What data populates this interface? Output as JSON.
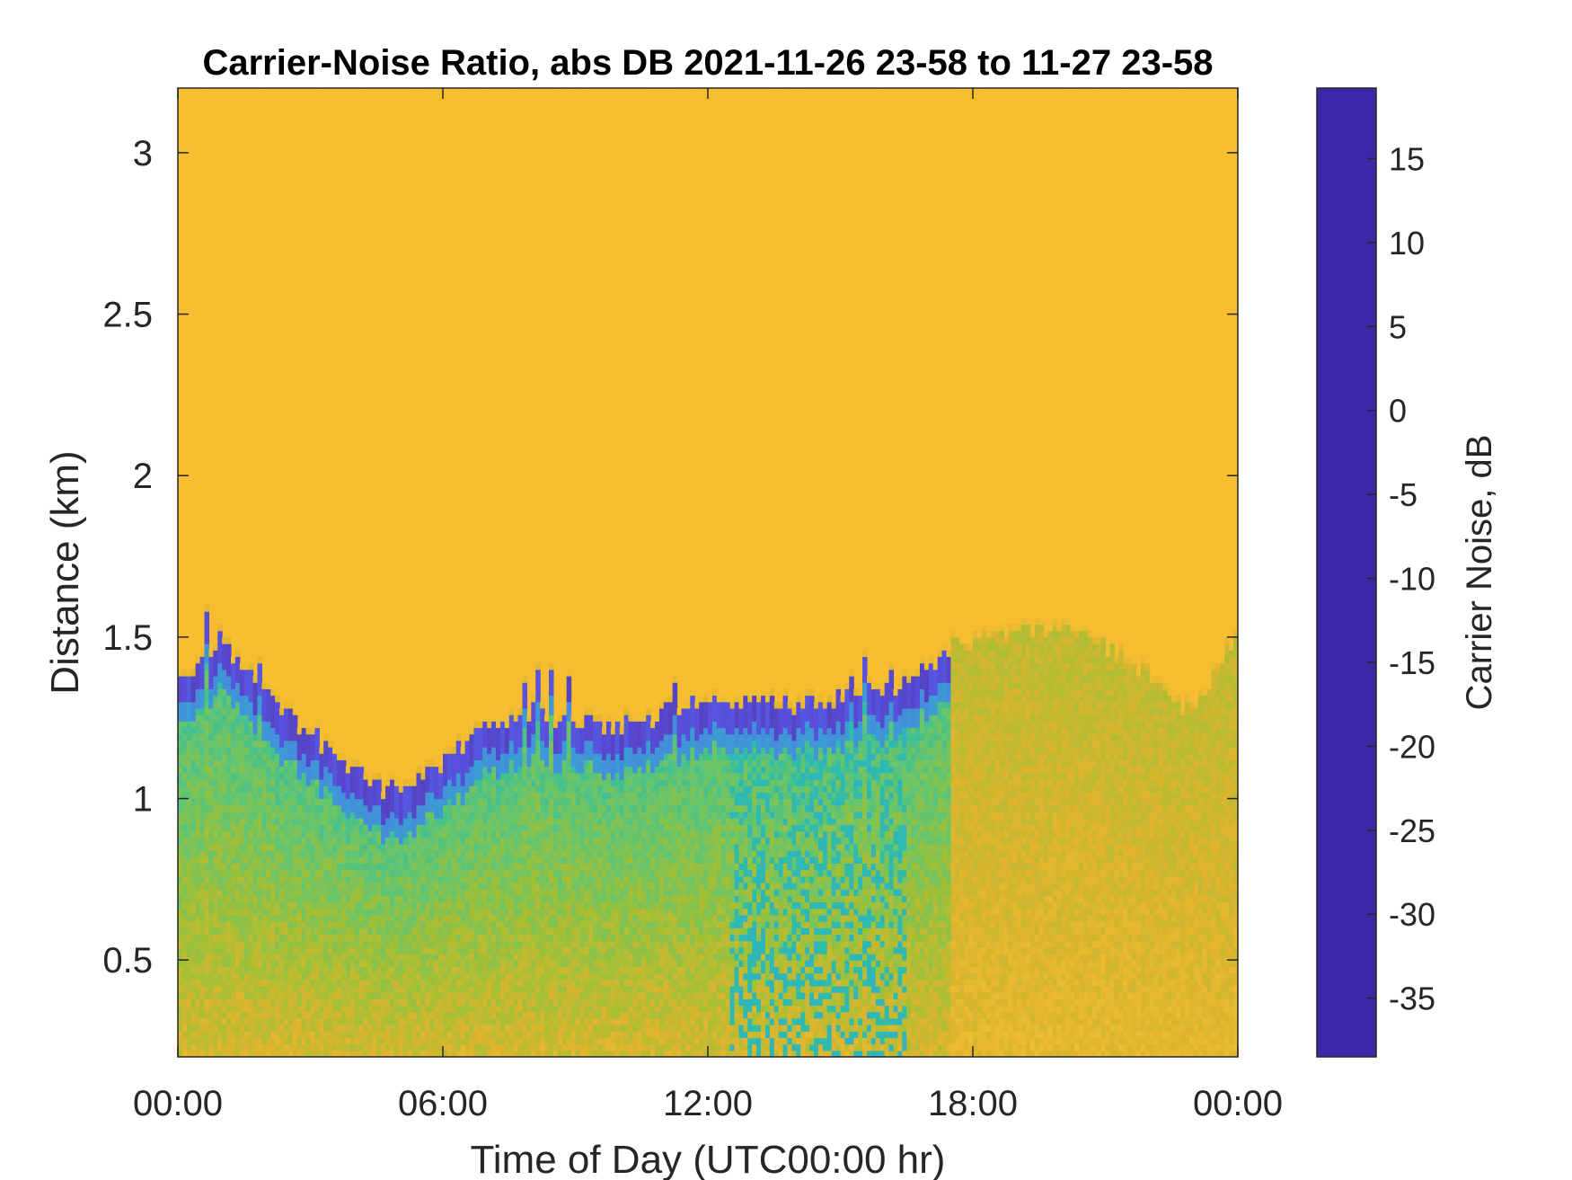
{
  "chart_data": {
    "type": "heatmap",
    "title": "Carrier-Noise Ratio, abs DB 2021-11-26 23-58 to 11-27 23-58",
    "xlabel": "Time of Day (UTC00:00 hr)",
    "ylabel": "Distance (km)",
    "x_unit": "hours",
    "xlim": [
      0,
      24
    ],
    "ylim": [
      0.2,
      3.2
    ],
    "x_ticks": [
      0,
      6,
      12,
      18,
      24
    ],
    "x_tick_labels": [
      "00:00",
      "06:00",
      "12:00",
      "18:00",
      "00:00"
    ],
    "y_ticks": [
      0.5,
      1,
      1.5,
      2,
      2.5,
      3
    ],
    "y_tick_labels": [
      "0.5",
      "1",
      "1.5",
      "2",
      "2.5",
      "3"
    ],
    "colorbar": {
      "label": "Carrier Noise, dB",
      "range": [
        -38.5,
        19.2
      ],
      "ticks": [
        15,
        10,
        5,
        0,
        -5,
        -10,
        -15,
        -20,
        -25,
        -30,
        -35
      ],
      "tick_labels": [
        "15",
        "10",
        "5",
        "0",
        "-5",
        "-10",
        "-15",
        "-20",
        "-25",
        "-30",
        "-35"
      ],
      "colormap": "parula"
    },
    "background_value": -29,
    "boundary_layer_top_km": {
      "time_hr": [
        0,
        0.5,
        1,
        1.5,
        2,
        3,
        4,
        4.8,
        5.5,
        6,
        7,
        8,
        9,
        10,
        11,
        12,
        13,
        14,
        15,
        16,
        17,
        17.5,
        18,
        19,
        20,
        21,
        22,
        23,
        24
      ],
      "height_km": [
        1.35,
        1.4,
        1.45,
        1.38,
        1.3,
        1.18,
        1.07,
        1.0,
        1.04,
        1.1,
        1.2,
        1.25,
        1.22,
        1.2,
        1.25,
        1.28,
        1.28,
        1.27,
        1.3,
        1.32,
        1.38,
        1.45,
        1.48,
        1.5,
        1.52,
        1.45,
        1.35,
        1.25,
        1.5
      ]
    },
    "peak_signal_db": 18,
    "grid": false
  }
}
